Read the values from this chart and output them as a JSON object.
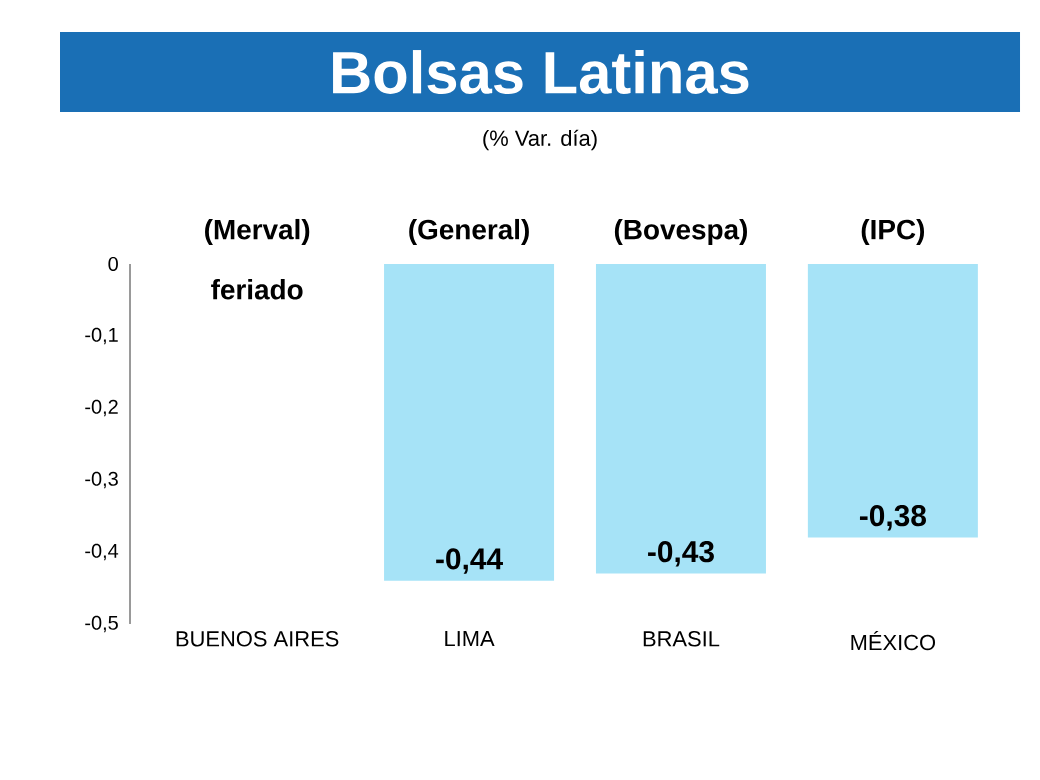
{
  "chart_data": {
    "type": "bar",
    "title": "Bolsas Latinas",
    "subtitle": "(% Var. día)",
    "categories": [
      "BUENOS AIRES",
      "LIMA",
      "BRASIL",
      "MÉXICO"
    ],
    "values": [
      null,
      -0.44,
      -0.43,
      -0.38
    ],
    "value_labels": [
      null,
      "-0,44",
      "-0,43",
      "-0,38"
    ],
    "color": "#a6e3f7",
    "ylim": [
      -0.5,
      0
    ],
    "yticks": [
      0,
      {
        "value": -0.1,
        "label": "-0,1"
      },
      {
        "value": -0.2,
        "label": "-0,2"
      },
      {
        "value": -0.3,
        "label": "-0,3"
      },
      {
        "value": -0.4,
        "label": "-0,4"
      },
      {
        "value": -0.5,
        "label": "-0,5"
      }
    ],
    "annotations": [
      "(Merval)",
      "(General)",
      "(Bovespa)",
      "(IPC)",
      "feriado"
    ],
    "grid": false
  }
}
